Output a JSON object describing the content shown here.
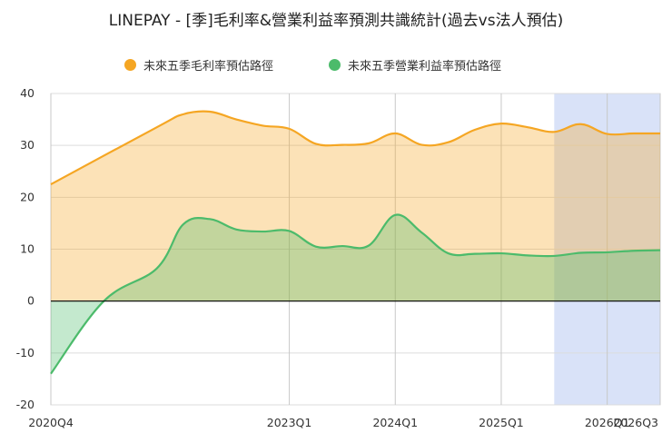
{
  "chart_data": {
    "type": "area",
    "title": "LINEPAY - [季]毛利率&營業利益率預測共識統計(過去vs法人預估)",
    "xlabel": "",
    "ylabel": "",
    "ylim": [
      -20,
      40
    ],
    "yticks": [
      40,
      30,
      20,
      10,
      0,
      -10,
      -20
    ],
    "xlim": [
      "2020Q4",
      "2026Q3"
    ],
    "xtick_labels": [
      "2020Q4",
      "2023Q1",
      "2024Q1",
      "2025Q1",
      "2026Q1",
      "2026Q3"
    ],
    "legend_position": "top-center",
    "grid": true,
    "forecast_region_start": "2025Q3",
    "series": [
      {
        "name": "未來五季毛利率預估路徑",
        "color": "#f5a623",
        "x": [
          "2020Q4",
          "2021Q4",
          "2022Q1",
          "2022Q2",
          "2022Q3",
          "2022Q4",
          "2023Q1",
          "2023Q2",
          "2023Q3",
          "2023Q4",
          "2024Q1",
          "2024Q2",
          "2024Q3",
          "2024Q4",
          "2025Q1",
          "2025Q2",
          "2025Q3",
          "2025Q4",
          "2026Q1",
          "2026Q2",
          "2026Q3"
        ],
        "values": [
          22.5,
          33.5,
          36.0,
          36.5,
          35.0,
          33.8,
          33.2,
          30.3,
          30.1,
          30.4,
          32.3,
          30.1,
          30.6,
          33.0,
          34.2,
          33.5,
          32.6,
          34.1,
          32.2,
          32.3,
          32.3
        ]
      },
      {
        "name": "未來五季營業利益率預估路徑",
        "color": "#4cbb6b",
        "x": [
          "2020Q4",
          "2021Q2",
          "2021Q4",
          "2022Q1",
          "2022Q2",
          "2022Q3",
          "2022Q4",
          "2023Q1",
          "2023Q2",
          "2023Q3",
          "2023Q4",
          "2024Q1",
          "2024Q2",
          "2024Q3",
          "2024Q4",
          "2025Q1",
          "2025Q2",
          "2025Q3",
          "2025Q4",
          "2026Q1",
          "2026Q2",
          "2026Q3"
        ],
        "values": [
          -14.0,
          0.0,
          6.3,
          14.8,
          15.8,
          13.8,
          13.4,
          13.5,
          10.5,
          10.6,
          10.7,
          16.6,
          13.2,
          9.2,
          9.1,
          9.2,
          8.8,
          8.7,
          9.3,
          9.4,
          9.7,
          9.8
        ]
      }
    ]
  }
}
